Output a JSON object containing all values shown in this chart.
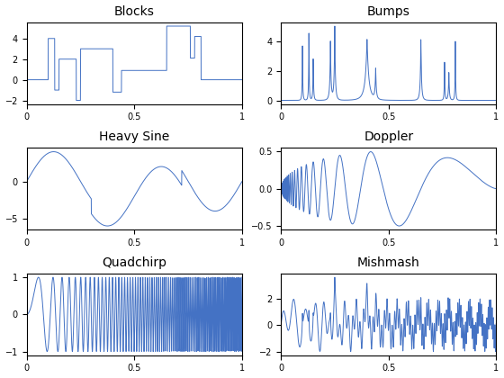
{
  "titles": [
    "Blocks",
    "Bumps",
    "Heavy Sine",
    "Doppler",
    "Quadchirp",
    "Mishmash"
  ],
  "line_color": "#4472c4",
  "background_color": "#ffffff",
  "n_points": 2048,
  "title_fontsize": 10,
  "figsize": [
    5.6,
    4.2
  ],
  "dpi": 100
}
